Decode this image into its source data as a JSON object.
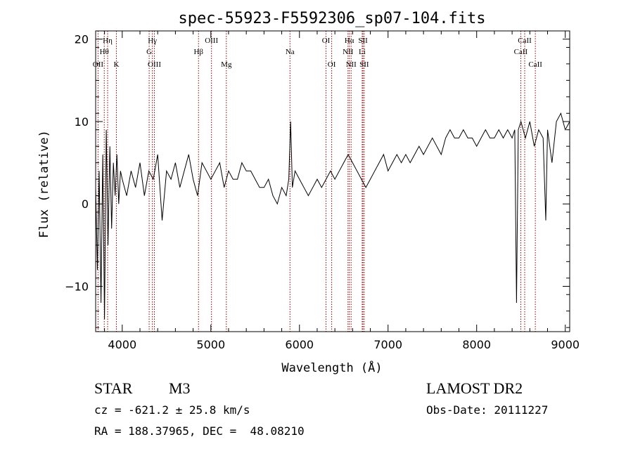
{
  "chart_data": {
    "type": "line",
    "title": "spec-55923-F5592306_sp07-104.fits",
    "xlabel": "Wavelength (Å)",
    "ylabel": "Flux (relative)",
    "xlim": [
      3700,
      9050
    ],
    "ylim": [
      -15.5,
      21
    ],
    "xticks": [
      4000,
      5000,
      6000,
      7000,
      8000,
      9000
    ],
    "yticks": [
      -10,
      0,
      10,
      20
    ],
    "grid": false,
    "line_color": "#000000",
    "marker_color": "#8b0000",
    "spectral_lines": [
      {
        "label": "Hη",
        "wavelength": 3835,
        "row": 1
      },
      {
        "label": "Hθ",
        "wavelength": 3797,
        "row": 2
      },
      {
        "label": "OII",
        "wavelength": 3727,
        "row": 3
      },
      {
        "label": "K",
        "wavelength": 3934,
        "row": 3
      },
      {
        "label": "Hγ",
        "wavelength": 4340,
        "row": 1
      },
      {
        "label": "G",
        "wavelength": 4304,
        "row": 2
      },
      {
        "label": "OIII",
        "wavelength": 4363,
        "row": 3
      },
      {
        "label": "OIII",
        "wavelength": 5007,
        "row": 1
      },
      {
        "label": "Hβ",
        "wavelength": 4861,
        "row": 2
      },
      {
        "label": "Mg",
        "wavelength": 5175,
        "row": 3
      },
      {
        "label": "Na",
        "wavelength": 5893,
        "row": 2
      },
      {
        "label": "OI",
        "wavelength": 6300,
        "row": 1
      },
      {
        "label": "OI",
        "wavelength": 6364,
        "row": 3
      },
      {
        "label": "Hα",
        "wavelength": 6563,
        "row": 1
      },
      {
        "label": "SII",
        "wavelength": 6717,
        "row": 1
      },
      {
        "label": "NII",
        "wavelength": 6548,
        "row": 2
      },
      {
        "label": "Li",
        "wavelength": 6708,
        "row": 2
      },
      {
        "label": "NII",
        "wavelength": 6583,
        "row": 3
      },
      {
        "label": "SII",
        "wavelength": 6731,
        "row": 3
      },
      {
        "label": "CaII",
        "wavelength": 8542,
        "row": 1
      },
      {
        "label": "CaII",
        "wavelength": 8498,
        "row": 2
      },
      {
        "label": "CaII",
        "wavelength": 8662,
        "row": 3
      }
    ],
    "series": [
      {
        "x": [
          3700,
          3720,
          3740,
          3760,
          3780,
          3800,
          3820,
          3840,
          3860,
          3880,
          3900,
          3920,
          3940,
          3960,
          3980,
          4000,
          4050,
          4100,
          4150,
          4200,
          4250,
          4300,
          4350,
          4400,
          4450,
          4500,
          4550,
          4600,
          4650,
          4700,
          4750,
          4800,
          4850,
          4900,
          4950,
          5000,
          5050,
          5100,
          5150,
          5200,
          5250,
          5300,
          5350,
          5400,
          5450,
          5500,
          5550,
          5600,
          5650,
          5700,
          5750,
          5800,
          5850,
          5880,
          5900,
          5920,
          5950,
          6000,
          6050,
          6100,
          6150,
          6200,
          6250,
          6300,
          6350,
          6400,
          6450,
          6500,
          6550,
          6600,
          6650,
          6700,
          6750,
          6800,
          6850,
          6900,
          6950,
          7000,
          7050,
          7100,
          7150,
          7200,
          7250,
          7300,
          7350,
          7400,
          7450,
          7500,
          7550,
          7600,
          7650,
          7700,
          7750,
          7800,
          7850,
          7900,
          7950,
          8000,
          8050,
          8100,
          8150,
          8200,
          8250,
          8300,
          8350,
          8400,
          8430,
          8450,
          8470,
          8500,
          8550,
          8600,
          8650,
          8700,
          8750,
          8780,
          8800,
          8850,
          8900,
          8950,
          9000,
          9050
        ],
        "y": [
          2,
          -8,
          4,
          -12,
          6,
          -14,
          9,
          -5,
          7,
          -3,
          5,
          1,
          6,
          0,
          4,
          3,
          1,
          4,
          2,
          5,
          1,
          4,
          3,
          6,
          -2,
          4,
          3,
          5,
          2,
          4,
          6,
          3,
          1,
          5,
          4,
          3,
          4,
          5,
          2,
          4,
          3,
          3,
          5,
          4,
          4,
          3,
          2,
          2,
          3,
          1,
          0,
          2,
          1,
          3,
          10,
          2,
          4,
          3,
          2,
          1,
          2,
          3,
          2,
          3,
          4,
          3,
          4,
          5,
          6,
          5,
          4,
          3,
          2,
          3,
          4,
          5,
          6,
          4,
          5,
          6,
          5,
          6,
          5,
          6,
          7,
          6,
          7,
          8,
          7,
          6,
          8,
          9,
          8,
          8,
          9,
          8,
          8,
          7,
          8,
          9,
          8,
          8,
          9,
          8,
          9,
          8,
          9,
          -12,
          9,
          10,
          8,
          10,
          7,
          9,
          8,
          -2,
          9,
          5,
          10,
          11,
          9,
          10
        ]
      }
    ]
  },
  "footer": {
    "object_type": "STAR",
    "subclass": "M3",
    "survey": "LAMOST DR2",
    "cz": "cz = -621.2 ± 25.8 km/s",
    "obs_date": "Obs-Date: 20111227",
    "radec": "RA = 188.37965, DEC =  48.08210"
  }
}
